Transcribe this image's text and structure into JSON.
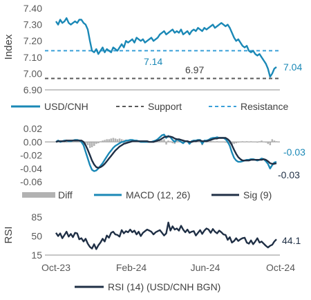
{
  "colors": {
    "usd_cnh": "#1a88b6",
    "support": "#595959",
    "resistance": "#3aa0d8",
    "diff": "#b2b2b2",
    "macd": "#1a88b6",
    "sig": "#1f2f45",
    "rsi": "#1f2f45",
    "axis": "#8c8c8c",
    "text": "#404040"
  },
  "chart_data": [
    {
      "type": "line",
      "panel": "price",
      "ylabel": "Index",
      "ylim": [
        6.9,
        7.4
      ],
      "yticks": [
        "7.40",
        "7.30",
        "7.20",
        "7.10",
        "7.00",
        "6.90"
      ],
      "ytick_values": [
        7.4,
        7.3,
        7.2,
        7.1,
        7.0,
        6.9
      ],
      "x_range": [
        "2023-10",
        "2024-10"
      ],
      "series": [
        {
          "name": "USD/CNH",
          "values": [
            7.32,
            7.3,
            7.33,
            7.31,
            7.32,
            7.34,
            7.31,
            7.3,
            7.31,
            7.32,
            7.31,
            7.33,
            7.33,
            7.31,
            7.3,
            7.27,
            7.2,
            7.14,
            7.13,
            7.15,
            7.12,
            7.14,
            7.16,
            7.13,
            7.15,
            7.14,
            7.13,
            7.16,
            7.15,
            7.14,
            7.16,
            7.18,
            7.16,
            7.2,
            7.19,
            7.2,
            7.21,
            7.19,
            7.22,
            7.21,
            7.2,
            7.21,
            7.19,
            7.2,
            7.21,
            7.22,
            7.2,
            7.21,
            7.22,
            7.24,
            7.25,
            7.26,
            7.24,
            7.25,
            7.26,
            7.27,
            7.25,
            7.26,
            7.25,
            7.27,
            7.24,
            7.25,
            7.26,
            7.24,
            7.26,
            7.27,
            7.26,
            7.28,
            7.27,
            7.26,
            7.28,
            7.27,
            7.28,
            7.29,
            7.3,
            7.28,
            7.29,
            7.3,
            7.31,
            7.3,
            7.29,
            7.3,
            7.28,
            7.25,
            7.22,
            7.2,
            7.21,
            7.19,
            7.17,
            7.16,
            7.17,
            7.14,
            7.13,
            7.14,
            7.12,
            7.11,
            7.12,
            7.1,
            7.08,
            7.06,
            7.03,
            6.98,
            7.0,
            7.03,
            7.04
          ]
        },
        {
          "name": "Support",
          "values": [
            6.97
          ],
          "style": "dashed"
        },
        {
          "name": "Resistance",
          "values": [
            7.14
          ],
          "style": "dashed"
        }
      ],
      "annotations": [
        "7.14",
        "6.97",
        "7.04"
      ]
    },
    {
      "type": "line",
      "panel": "macd",
      "ylim": [
        -0.06,
        0.02
      ],
      "yticks": [
        "0.02",
        "0.00",
        "-0.02",
        "-0.04",
        "-0.06"
      ],
      "ytick_values": [
        0.02,
        0.0,
        -0.02,
        -0.04,
        -0.06
      ],
      "series": [
        {
          "name": "Diff",
          "type": "bar",
          "values": [
            0.0,
            0.001,
            0.0,
            0.0,
            0.0,
            -0.001,
            0.0,
            0.0,
            0.0,
            0.001,
            0.0,
            0.0,
            -0.001,
            -0.002,
            -0.003,
            -0.005,
            -0.009,
            -0.008,
            -0.006,
            -0.003,
            -0.002,
            0.001,
            0.002,
            0.003,
            0.004,
            0.004,
            0.005,
            0.006,
            0.005,
            0.004,
            0.005,
            0.004,
            0.003,
            0.003,
            0.002,
            0.002,
            0.002,
            0.001,
            0.001,
            0.0,
            0.0,
            0.0,
            0.0,
            0.0,
            0.001,
            0.0,
            0.0,
            0.001,
            0.001,
            0.002,
            0.003,
            0.004,
            -0.004,
            0.002,
            0.001,
            -0.002,
            -0.003,
            0.002,
            0.001,
            0.0,
            -0.002,
            0.001,
            0.0,
            -0.003,
            0.002,
            0.001,
            0.0,
            0.001,
            0.0,
            -0.005,
            0.001,
            0.0,
            0.001,
            0.002,
            0.001,
            0.0,
            0.001,
            0.0,
            0.0,
            0.0,
            -0.001,
            -0.002,
            -0.003,
            -0.005,
            -0.003,
            -0.002,
            -0.001,
            0.0,
            0.001,
            0.0,
            0.001,
            0.0,
            0.001,
            0.0,
            0.0,
            -0.001,
            0.001,
            0.002,
            0.0,
            -0.001,
            -0.003,
            -0.005,
            0.004,
            0.002,
            0.001
          ]
        },
        {
          "name": "MACD (12, 26)",
          "values": [
            0.0,
            0.002,
            0.0,
            0.001,
            0.002,
            0.002,
            0.001,
            0.001,
            0.002,
            0.003,
            0.003,
            0.002,
            0.0,
            -0.005,
            -0.015,
            -0.025,
            -0.035,
            -0.042,
            -0.044,
            -0.043,
            -0.04,
            -0.036,
            -0.032,
            -0.027,
            -0.022,
            -0.017,
            -0.013,
            -0.009,
            -0.006,
            -0.004,
            -0.002,
            0.0,
            0.0,
            0.002,
            0.002,
            0.003,
            0.003,
            0.002,
            0.002,
            0.001,
            0.0,
            0.0,
            0.0,
            0.0,
            0.0,
            0.0,
            0.001,
            0.002,
            0.004,
            0.007,
            0.01,
            0.011,
            0.006,
            0.009,
            0.007,
            0.003,
            0.0,
            0.004,
            0.002,
            0.0,
            -0.002,
            0.001,
            0.001,
            -0.003,
            0.001,
            0.002,
            0.002,
            0.003,
            0.003,
            -0.003,
            0.002,
            0.002,
            0.003,
            0.005,
            0.006,
            0.006,
            0.007,
            0.006,
            0.006,
            0.006,
            0.004,
            0.0,
            -0.006,
            -0.016,
            -0.024,
            -0.028,
            -0.03,
            -0.03,
            -0.029,
            -0.028,
            -0.027,
            -0.027,
            -0.026,
            -0.026,
            -0.027,
            -0.028,
            -0.027,
            -0.025,
            -0.026,
            -0.029,
            -0.033,
            -0.04,
            -0.035,
            -0.031,
            -0.03
          ]
        },
        {
          "name": "Sig (9)",
          "values": [
            0.0,
            0.001,
            0.001,
            0.001,
            0.001,
            0.002,
            0.002,
            0.002,
            0.002,
            0.002,
            0.002,
            0.002,
            0.002,
            0.0,
            -0.005,
            -0.012,
            -0.02,
            -0.028,
            -0.034,
            -0.038,
            -0.039,
            -0.038,
            -0.036,
            -0.033,
            -0.029,
            -0.025,
            -0.021,
            -0.017,
            -0.013,
            -0.01,
            -0.007,
            -0.005,
            -0.003,
            -0.002,
            -0.001,
            0.0,
            0.001,
            0.001,
            0.001,
            0.001,
            0.001,
            0.001,
            0.001,
            0.001,
            0.0,
            0.0,
            0.0,
            0.001,
            0.002,
            0.003,
            0.005,
            0.007,
            0.008,
            0.008,
            0.008,
            0.007,
            0.005,
            0.004,
            0.004,
            0.003,
            0.002,
            0.001,
            0.001,
            0.0,
            0.0,
            0.001,
            0.001,
            0.002,
            0.002,
            0.001,
            0.001,
            0.001,
            0.002,
            0.003,
            0.004,
            0.005,
            0.005,
            0.006,
            0.006,
            0.006,
            0.006,
            0.004,
            0.001,
            -0.005,
            -0.012,
            -0.018,
            -0.023,
            -0.026,
            -0.028,
            -0.028,
            -0.028,
            -0.028,
            -0.027,
            -0.027,
            -0.027,
            -0.027,
            -0.027,
            -0.027,
            -0.026,
            -0.027,
            -0.029,
            -0.032,
            -0.033,
            -0.033,
            -0.032
          ]
        }
      ],
      "annotations": [
        "-0.03",
        "-0.03"
      ]
    },
    {
      "type": "line",
      "panel": "rsi",
      "ylabel": "RSI",
      "ylim": [
        15,
        85
      ],
      "yticks": [
        "85",
        "50",
        "15"
      ],
      "ytick_values": [
        85,
        50,
        15
      ],
      "x_ticks": [
        "Oct-23",
        "Feb-24",
        "Jun-24",
        "Oct-24"
      ],
      "series": [
        {
          "name": "RSI (14) (USD/CNH BGN)",
          "values": [
            56,
            50,
            55,
            46,
            52,
            58,
            49,
            54,
            48,
            56,
            55,
            44,
            46,
            40,
            45,
            36,
            30,
            27,
            35,
            26,
            33,
            38,
            45,
            40,
            51,
            47,
            56,
            58,
            53,
            52,
            49,
            61,
            55,
            59,
            57,
            62,
            57,
            60,
            53,
            58,
            50,
            56,
            59,
            62,
            60,
            58,
            53,
            57,
            59,
            61,
            56,
            51,
            55,
            75,
            60,
            68,
            62,
            64,
            60,
            69,
            62,
            57,
            62,
            56,
            58,
            59,
            51,
            56,
            61,
            54,
            60,
            64,
            62,
            56,
            63,
            58,
            55,
            60,
            57,
            53,
            52,
            43,
            48,
            38,
            41,
            46,
            41,
            44,
            46,
            47,
            38,
            36,
            42,
            35,
            40,
            46,
            38,
            40,
            36,
            32,
            29,
            32,
            34,
            40,
            44
          ]
        }
      ],
      "annotations": [
        "44.1"
      ]
    }
  ],
  "legends": {
    "price": [
      "USD/CNH",
      "Support",
      "Resistance"
    ],
    "macd": [
      "Diff",
      "MACD (12, 26)",
      "Sig (9)"
    ],
    "rsi": [
      "RSI (14) (USD/CNH BGN)"
    ]
  }
}
